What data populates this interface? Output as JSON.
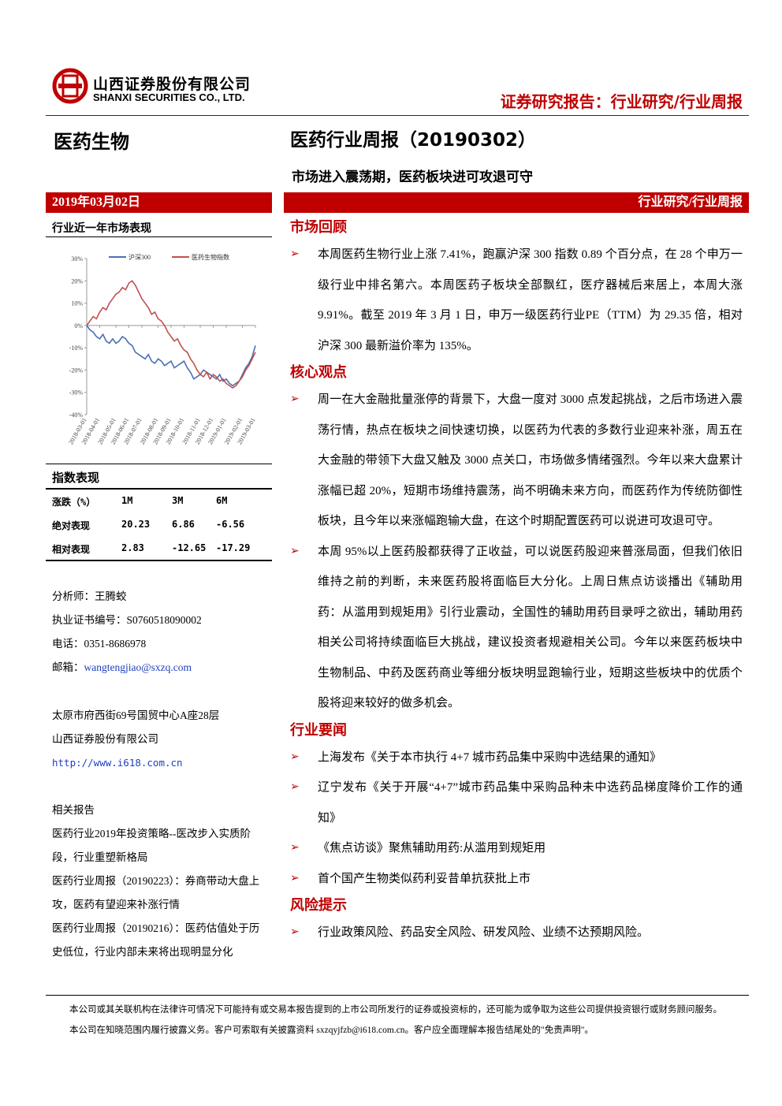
{
  "header": {
    "company_cn": "山西证券股份有限公司",
    "company_en": "SHANXI SECURITIES CO., LTD.",
    "report_type": "证券研究报告：行业研究/行业周报"
  },
  "sector": "医药生物",
  "title": "医药行业周报（20190302）",
  "subtitle": "市场进入震荡期，医药板块进可攻退可守",
  "date": "2019年03月02日",
  "banner_right": "行业研究/行业周报",
  "chart_caption": "行业近一年市场表现",
  "chart_data": {
    "type": "line",
    "xlim": [
      0,
      52
    ],
    "xticks": [
      {
        "value": 0,
        "label": "2018-03-01"
      },
      {
        "value": 4,
        "label": "2018-04-01"
      },
      {
        "value": 9,
        "label": "2018-05-01"
      },
      {
        "value": 13,
        "label": "2018-06-01"
      },
      {
        "value": 17,
        "label": "2018-07-01"
      },
      {
        "value": 22,
        "label": "2018-08-01"
      },
      {
        "value": 26,
        "label": "2018-09-01"
      },
      {
        "value": 30,
        "label": "2018-10-01"
      },
      {
        "value": 35,
        "label": "2018-11-01"
      },
      {
        "value": 39,
        "label": "2018-12-01"
      },
      {
        "value": 43,
        "label": "2019-01-01"
      },
      {
        "value": 48,
        "label": "2019-02-01"
      },
      {
        "value": 52,
        "label": "2019-03-01"
      }
    ],
    "ylim": [
      -40,
      30
    ],
    "yticks": [
      {
        "value": 30,
        "label": "30%"
      },
      {
        "value": 20,
        "label": "20%"
      },
      {
        "value": 10,
        "label": "10%"
      },
      {
        "value": 0,
        "label": "0%"
      },
      {
        "value": -10,
        "label": "-10%"
      },
      {
        "value": -20,
        "label": "-20%"
      },
      {
        "value": -30,
        "label": "-30%"
      },
      {
        "value": -40,
        "label": "-40%"
      }
    ],
    "legend": "top",
    "series": [
      {
        "name": "沪深300",
        "color": "#4a6fb5",
        "values": [
          0,
          -2,
          -3,
          -5,
          -6,
          -4,
          -7,
          -8,
          -6,
          -8,
          -7,
          -5,
          -6,
          -8,
          -9,
          -12,
          -13,
          -14,
          -15,
          -13,
          -16,
          -17,
          -15,
          -16,
          -18,
          -17,
          -16,
          -19,
          -18,
          -17,
          -16,
          -19,
          -21,
          -24,
          -23,
          -22,
          -20,
          -21,
          -22,
          -23,
          -24,
          -22,
          -25,
          -24,
          -26,
          -27,
          -26,
          -25,
          -22,
          -19,
          -17,
          -14,
          -9
        ]
      },
      {
        "name": "医药生物指数",
        "color": "#c0504d",
        "values": [
          0,
          2,
          4,
          3,
          6,
          8,
          7,
          10,
          12,
          14,
          15,
          17,
          16,
          19,
          20,
          18,
          15,
          12,
          10,
          8,
          5,
          6,
          3,
          2,
          0,
          -3,
          -5,
          -7,
          -6,
          -9,
          -11,
          -12,
          -15,
          -17,
          -20,
          -22,
          -23,
          -21,
          -24,
          -22,
          -23,
          -25,
          -24,
          -26,
          -27,
          -28,
          -27,
          -25,
          -23,
          -20,
          -18,
          -15,
          -12
        ]
      }
    ]
  },
  "index_table": {
    "title": "指数表现",
    "header": [
      "涨跌（%）",
      "1M",
      "3M",
      "6M"
    ],
    "rows": [
      [
        "绝对表现",
        "20.23",
        "6.86",
        "-6.56"
      ],
      [
        "相对表现",
        "2.83",
        "-12.65",
        "-17.29"
      ]
    ]
  },
  "contact": {
    "analyst": "分析师：王腾蛟",
    "license": "执业证书编号：S0760518090002",
    "phone": "电话：0351-8686978",
    "email_label": "邮箱：",
    "email": "wangtengjiao@sxzq.com"
  },
  "address": {
    "line": "太原市府西街69号国贸中心A座28层",
    "company": "山西证券股份有限公司",
    "url": "http://www.i618.com.cn"
  },
  "related": {
    "title": "相关报告",
    "items": [
      "医药行业2019年投资策略--医改步入实质阶段，行业重塑新格局",
      "医药行业周报（20190223）：券商带动大盘上攻，医药有望迎来补涨行情",
      "医药行业周报（20190216）：医药估值处于历史低位，行业内部未来将出现明显分化"
    ]
  },
  "sections": [
    {
      "heading": "市场回顾",
      "bullets": [
        "本周医药生物行业上涨 7.41%，跑赢沪深 300 指数 0.89 个百分点，在 28 个申万一级行业中排名第六。本周医药子板块全部飘红，医疗器械后来居上，本周大涨 9.91%。截至 2019 年 3 月 1 日，申万一级医药行业PE（TTM）为 29.35 倍，相对沪深 300 最新溢价率为 135%。"
      ]
    },
    {
      "heading": "核心观点",
      "bullets": [
        "周一在大金融批量涨停的背景下，大盘一度对 3000 点发起挑战，之后市场进入震荡行情，热点在板块之间快速切换，以医药为代表的多数行业迎来补涨，周五在大金融的带领下大盘又触及 3000 点关口，市场做多情绪强烈。今年以来大盘累计涨幅已超 20%，短期市场维持震荡，尚不明确未来方向，而医药作为传统防御性板块，且今年以来涨幅跑输大盘，在这个时期配置医药可以说进可攻退可守。",
        "本周 95%以上医药股都获得了正收益，可以说医药股迎来普涨局面，但我们依旧维持之前的判断，未来医药股将面临巨大分化。上周日焦点访谈播出《辅助用药：从滥用到规矩用》引行业震动，全国性的辅助用药目录呼之欲出，辅助用药相关公司将持续面临巨大挑战，建议投资者规避相关公司。今年以来医药板块中生物制品、中药及医药商业等细分板块明显跑输行业，短期这些板块中的优质个股将迎来较好的做多机会。"
      ]
    },
    {
      "heading": "行业要闻",
      "bullets": [
        "上海发布《关于本市执行 4+7 城市药品集中采购中选结果的通知》",
        "辽宁发布《关于开展“4+7”城市药品集中采购品种未中选药品梯度降价工作的通知》",
        "《焦点访谈》聚焦辅助用药:从滥用到规矩用",
        "首个国产生物类似药利妥昔单抗获批上市"
      ]
    },
    {
      "heading": "风险提示",
      "bullets": [
        "行业政策风险、药品安全风险、研发风险、业绩不达预期风险。"
      ]
    }
  ],
  "footer": "本公司或其关联机构在法律许可情况下可能持有或交易本报告提到的上市公司所发行的证券或投资标的，还可能为或争取为这些公司提供投资银行或财务顾问服务。本公司在知晓范围内履行披露义务。客户可索取有关披露资料 sxzqyjfzb@i618.com.cn。客户应全面理解本报告结尾处的\"免责声明\"。"
}
